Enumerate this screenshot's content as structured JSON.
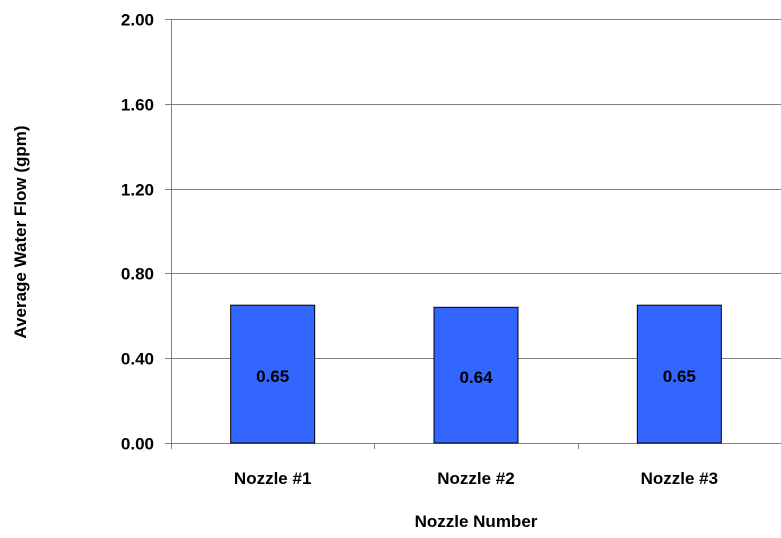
{
  "chart_data": {
    "type": "bar",
    "title": "",
    "xlabel": "Nozzle Number",
    "ylabel": "Average Water Flow (gpm)",
    "categories": [
      "Nozzle #1",
      "Nozzle #2",
      "Nozzle #3"
    ],
    "values": [
      0.65,
      0.64,
      0.65
    ],
    "data_labels": [
      "0.65",
      "0.64",
      "0.65"
    ],
    "ylim": [
      0,
      2.0
    ],
    "y_ticks": [
      0.0,
      0.4,
      0.8,
      1.2,
      1.6,
      2.0
    ],
    "y_tick_labels": [
      "0.00",
      "0.40",
      "0.80",
      "1.20",
      "1.60",
      "2.00"
    ],
    "grid": true,
    "legend": "none",
    "colors": {
      "bar_fill": "#3366FF",
      "bar_stroke": "#000000",
      "grid": "#808080",
      "axis": "#808080",
      "text": "#000000"
    }
  }
}
